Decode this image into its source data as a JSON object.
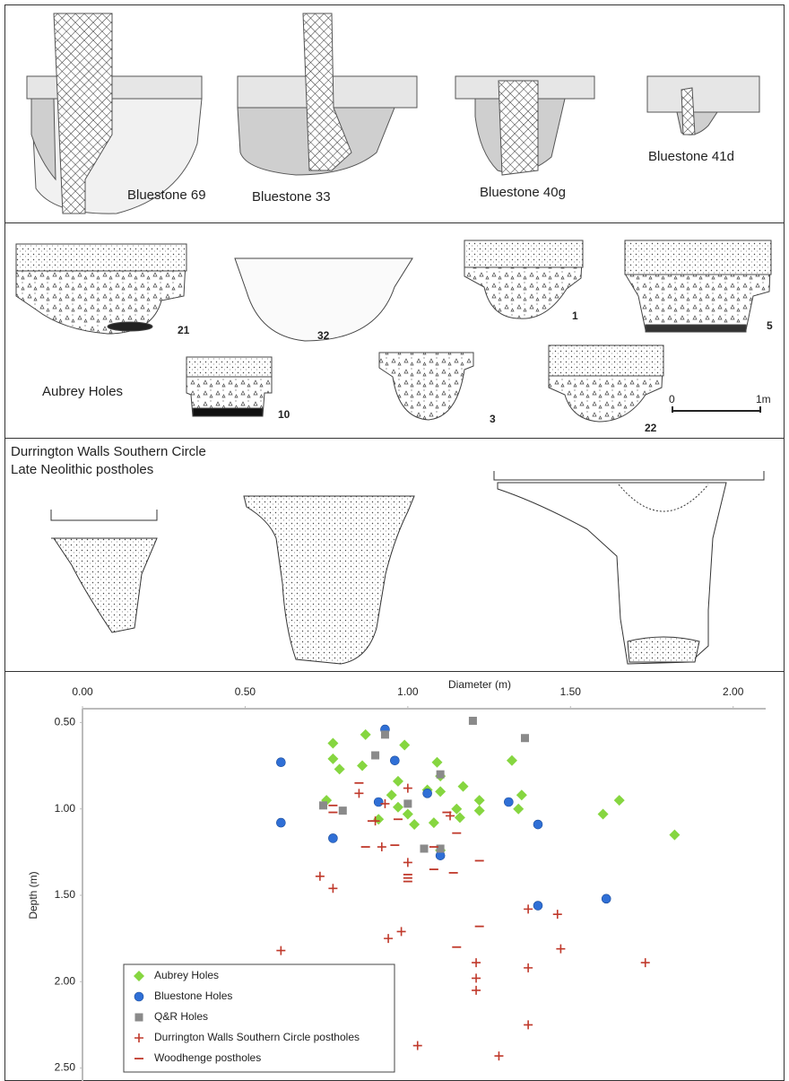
{
  "panels": {
    "bluestones": {
      "labels": [
        "Bluestone 69",
        "Bluestone 33",
        "Bluestone 40g",
        "Bluestone 41d"
      ]
    },
    "aubrey": {
      "title": "Aubrey Holes",
      "numbers": [
        "21",
        "32",
        "1",
        "5",
        "10",
        "3",
        "22"
      ],
      "scale": [
        "0",
        "1m"
      ]
    },
    "durrington": {
      "title": "Durrington Walls Southern Circle",
      "subtitle": "Late Neolithic postholes"
    }
  },
  "chart_data": {
    "type": "scatter",
    "x_label": "Diameter (m)",
    "y_label": "Depth (m)",
    "xlim": [
      0,
      2.1
    ],
    "ylim": [
      2.575,
      0.42
    ],
    "xticks": [
      {
        "value": 0,
        "label": "0.00"
      },
      {
        "value": 0.5,
        "label": "0.50"
      },
      {
        "value": 1,
        "label": "1.00"
      },
      {
        "value": 1.5,
        "label": "1.50"
      },
      {
        "value": 2,
        "label": "2.00"
      }
    ],
    "yticks": [
      {
        "value": 0.5,
        "label": "0.50"
      },
      {
        "value": 1,
        "label": "1.00"
      },
      {
        "value": 1.5,
        "label": "1.50"
      },
      {
        "value": 2,
        "label": "2.00"
      },
      {
        "value": 2.5,
        "label": "2.50"
      }
    ],
    "x_axis_position": "top",
    "grid": false,
    "legend": "lower-left",
    "series": [
      {
        "name": "Aubrey Holes",
        "color": "#86d640",
        "marker": "diamond",
        "x": [
          0.77,
          0.87,
          0.77,
          0.99,
          1.09,
          0.79,
          0.86,
          0.75,
          0.97,
          0.97,
          1.0,
          1.06,
          1.1,
          1.1,
          0.91,
          0.95,
          1.02,
          1.08,
          1.17,
          1.15,
          1.22,
          1.22,
          1.32,
          1.35,
          1.34,
          1.16,
          1.1,
          1.65,
          1.6,
          1.82
        ],
        "values": [
          0.62,
          0.57,
          0.71,
          0.63,
          0.73,
          0.77,
          0.75,
          0.95,
          0.84,
          0.99,
          1.03,
          0.89,
          0.81,
          0.9,
          1.06,
          0.92,
          1.09,
          1.08,
          0.87,
          1.0,
          0.95,
          1.01,
          0.72,
          0.92,
          1.0,
          1.05,
          1.24,
          0.95,
          1.03,
          1.15
        ]
      },
      {
        "name": "Bluestone Holes",
        "color": "#2f6fd6",
        "marker": "circle",
        "x": [
          0.93,
          0.61,
          0.96,
          0.91,
          1.06,
          1.31,
          1.4,
          0.61,
          0.77,
          1.1,
          1.4,
          1.61
        ],
        "values": [
          0.54,
          0.73,
          0.72,
          0.96,
          0.91,
          0.96,
          1.09,
          1.08,
          1.17,
          1.27,
          1.56,
          1.52
        ]
      },
      {
        "name": "Q&R Holes",
        "color": "#8a8a8a",
        "marker": "square",
        "x": [
          1.2,
          1.36,
          0.93,
          0.9,
          1.1,
          0.74,
          0.8,
          1.0,
          1.05,
          1.1
        ],
        "values": [
          0.49,
          0.59,
          0.57,
          0.69,
          0.8,
          0.98,
          1.01,
          0.97,
          1.23,
          1.23
        ]
      },
      {
        "name": "Durrington Walls Southern Circle postholes",
        "color": "#c0392b",
        "marker": "plus",
        "x": [
          0.85,
          0.93,
          1.0,
          0.9,
          0.92,
          1.13,
          1.0,
          0.73,
          0.77,
          1.37,
          1.46,
          0.98,
          0.94,
          0.61,
          1.47,
          1.21,
          1.21,
          1.21,
          1.37,
          1.73,
          1.37,
          1.03,
          1.28
        ],
        "values": [
          0.91,
          0.97,
          0.88,
          1.07,
          1.22,
          1.04,
          1.31,
          1.39,
          1.46,
          1.58,
          1.61,
          1.71,
          1.75,
          1.82,
          1.81,
          1.89,
          1.98,
          2.05,
          1.92,
          1.89,
          2.25,
          2.37,
          2.43
        ]
      },
      {
        "name": "Woodhenge postholes",
        "color": "#c0392b",
        "marker": "minus",
        "x": [
          0.77,
          0.77,
          0.85,
          0.89,
          0.87,
          0.97,
          0.96,
          1.08,
          1.12,
          1.15,
          1.08,
          1.0,
          1.0,
          1.0,
          1.14,
          1.22,
          1.22,
          1.15
        ],
        "values": [
          0.98,
          1.02,
          0.85,
          1.07,
          1.22,
          1.06,
          1.21,
          1.22,
          1.02,
          1.14,
          1.35,
          1.38,
          1.4,
          1.42,
          1.37,
          1.3,
          1.68,
          1.8
        ]
      }
    ]
  }
}
